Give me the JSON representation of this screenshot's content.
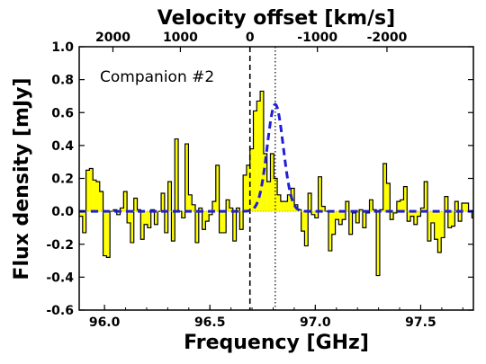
{
  "chart_data": {
    "type": "area",
    "annotation": "Companion #2",
    "xlabel": "Frequency [GHz]",
    "ylabel": "Flux density [mJy]",
    "x2label": "Velocity offset [km/s]",
    "xlim": [
      95.88,
      97.75
    ],
    "ylim": [
      -0.6,
      1.0
    ],
    "x_ticks": [
      96.0,
      96.5,
      97.0,
      97.5
    ],
    "x_tick_labels": [
      "96.0",
      "96.5",
      "97.0",
      "97.5"
    ],
    "y_ticks": [
      -0.6,
      -0.4,
      -0.2,
      0.0,
      0.2,
      0.4,
      0.6,
      0.8,
      1.0
    ],
    "y_tick_labels": [
      "-0.6",
      "-0.4",
      "-0.2",
      "0.0",
      "0.2",
      "0.4",
      "0.6",
      "0.8",
      "1.0"
    ],
    "top_ticks": [
      {
        "freq": 96.04,
        "label": "2000"
      },
      {
        "freq": 96.36,
        "label": "1000"
      },
      {
        "freq": 96.69,
        "label": "0"
      },
      {
        "freq": 97.01,
        "label": "-1000"
      },
      {
        "freq": 97.34,
        "label": "-2000"
      }
    ],
    "reference_lines": [
      {
        "x": 96.69,
        "style": "dashed"
      },
      {
        "x": 96.81,
        "style": "dotted"
      }
    ],
    "spectrum": {
      "name": "observed spectrum",
      "fill_color": "#ffff00",
      "line_color": "#000000",
      "bin_start": 95.88,
      "bin_width": 0.0162,
      "values": [
        -0.03,
        -0.13,
        0.25,
        0.26,
        0.19,
        0.18,
        0.12,
        -0.27,
        -0.28,
        0.0,
        0.01,
        -0.02,
        0.02,
        0.12,
        -0.07,
        -0.19,
        0.08,
        0.01,
        -0.17,
        -0.08,
        -0.1,
        0.01,
        -0.08,
        0.0,
        0.11,
        -0.13,
        0.18,
        -0.18,
        0.44,
        0.0,
        -0.04,
        0.41,
        0.1,
        0.04,
        -0.19,
        0.02,
        -0.11,
        -0.06,
        -0.02,
        0.06,
        0.28,
        -0.13,
        -0.13,
        0.07,
        0.02,
        -0.18,
        0.02,
        -0.11,
        0.22,
        0.28,
        0.38,
        0.61,
        0.67,
        0.73,
        0.35,
        0.18,
        0.35,
        0.2,
        0.1,
        0.06,
        0.06,
        0.1,
        0.14,
        0.04,
        0.01,
        -0.12,
        -0.21,
        0.11,
        -0.02,
        -0.04,
        0.21,
        0.03,
        0.0,
        -0.24,
        -0.14,
        -0.05,
        -0.08,
        -0.05,
        0.06,
        -0.14,
        -0.01,
        -0.07,
        0.01,
        -0.1,
        -0.01,
        0.07,
        0.01,
        -0.39,
        0.01,
        0.29,
        0.17,
        -0.05,
        -0.01,
        0.06,
        0.07,
        0.15,
        -0.06,
        -0.03,
        -0.08,
        -0.03,
        0.02,
        0.18,
        -0.18,
        -0.07,
        -0.17,
        -0.25,
        -0.16,
        0.09,
        -0.1,
        -0.09,
        0.06,
        -0.06,
        0.05,
        0.05,
        0.0,
        -0.04,
        0.05,
        0.17,
        -0.06,
        0.06,
        -0.1,
        -0.26,
        -0.3,
        0.02,
        -0.04,
        0.15,
        0.06,
        0.29,
        -0.05
      ]
    },
    "model": {
      "name": "gaussian fit",
      "color": "#1f1fd6",
      "style": "dashed",
      "amplitude": 0.65,
      "center": 96.81,
      "sigma": 0.038
    },
    "grid": false
  }
}
